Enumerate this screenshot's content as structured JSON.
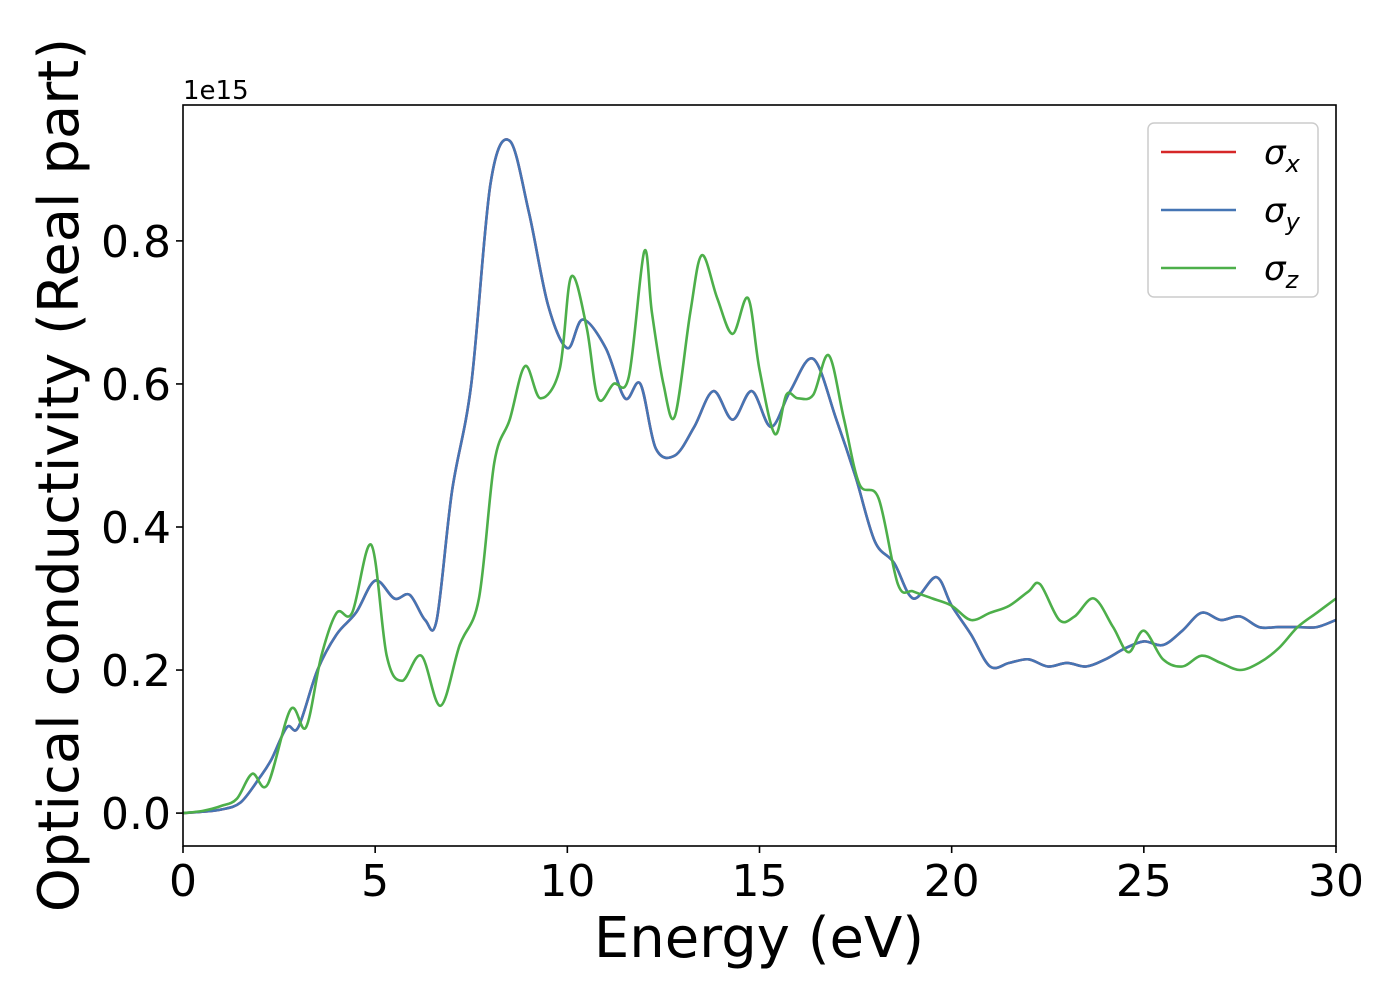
{
  "chart_data": {
    "type": "line",
    "xlabel": "Energy (eV)",
    "ylabel": "Optical conductivity (Real part)",
    "y_offset_text": "1e15",
    "y_scale": 1000000000000000.0,
    "xlim": [
      0,
      30
    ],
    "ylim": [
      -0.046,
      0.99
    ],
    "x_ticks": [
      0,
      5,
      10,
      15,
      20,
      25,
      30
    ],
    "x_tick_labels": [
      "0",
      "5",
      "10",
      "15",
      "20",
      "25",
      "30"
    ],
    "y_ticks": [
      0.0,
      0.2,
      0.4,
      0.6,
      0.8
    ],
    "y_tick_labels": [
      "0.0",
      "0.2",
      "0.4",
      "0.6",
      "0.8"
    ],
    "grid": false,
    "legend_position": "top-right",
    "series": [
      {
        "name": "σx",
        "legend_main": "σ",
        "legend_sub": "x",
        "color": "#d62728",
        "x": [
          0,
          0.5,
          1.0,
          1.5,
          2.0,
          2.3,
          2.7,
          3.0,
          3.5,
          4.0,
          4.5,
          5.0,
          5.5,
          5.9,
          6.3,
          6.6,
          7.0,
          7.5,
          8.0,
          8.5,
          9.0,
          9.5,
          10.0,
          10.4,
          11.0,
          11.5,
          11.9,
          12.3,
          12.8,
          13.3,
          13.8,
          14.3,
          14.8,
          15.3,
          15.8,
          16.4,
          17.0,
          17.5,
          18.0,
          18.5,
          19.0,
          19.6,
          20.0,
          20.5,
          21.0,
          21.5,
          22.0,
          22.5,
          23.0,
          23.5,
          24.0,
          24.5,
          25.0,
          25.5,
          26.0,
          26.5,
          27.0,
          27.5,
          28.0,
          28.5,
          29.0,
          29.5,
          30.0
        ],
        "y": [
          0.0,
          0.002,
          0.005,
          0.015,
          0.05,
          0.075,
          0.12,
          0.12,
          0.2,
          0.25,
          0.28,
          0.325,
          0.3,
          0.305,
          0.27,
          0.27,
          0.45,
          0.6,
          0.88,
          0.94,
          0.84,
          0.71,
          0.65,
          0.69,
          0.65,
          0.58,
          0.6,
          0.51,
          0.5,
          0.54,
          0.59,
          0.55,
          0.59,
          0.54,
          0.59,
          0.635,
          0.55,
          0.47,
          0.38,
          0.35,
          0.3,
          0.33,
          0.29,
          0.25,
          0.205,
          0.21,
          0.215,
          0.205,
          0.21,
          0.205,
          0.215,
          0.23,
          0.24,
          0.235,
          0.255,
          0.28,
          0.27,
          0.275,
          0.26,
          0.26,
          0.26,
          0.26,
          0.27
        ]
      },
      {
        "name": "σy",
        "legend_main": "σ",
        "legend_sub": "y",
        "color": "#4575b4",
        "x": [
          0,
          0.5,
          1.0,
          1.5,
          2.0,
          2.3,
          2.7,
          3.0,
          3.5,
          4.0,
          4.5,
          5.0,
          5.5,
          5.9,
          6.3,
          6.6,
          7.0,
          7.5,
          8.0,
          8.5,
          9.0,
          9.5,
          10.0,
          10.4,
          11.0,
          11.5,
          11.9,
          12.3,
          12.8,
          13.3,
          13.8,
          14.3,
          14.8,
          15.3,
          15.8,
          16.4,
          17.0,
          17.5,
          18.0,
          18.5,
          19.0,
          19.6,
          20.0,
          20.5,
          21.0,
          21.5,
          22.0,
          22.5,
          23.0,
          23.5,
          24.0,
          24.5,
          25.0,
          25.5,
          26.0,
          26.5,
          27.0,
          27.5,
          28.0,
          28.5,
          29.0,
          29.5,
          30.0
        ],
        "y": [
          0.0,
          0.002,
          0.005,
          0.015,
          0.05,
          0.075,
          0.12,
          0.12,
          0.2,
          0.25,
          0.28,
          0.325,
          0.3,
          0.305,
          0.27,
          0.27,
          0.45,
          0.6,
          0.88,
          0.94,
          0.84,
          0.71,
          0.65,
          0.69,
          0.65,
          0.58,
          0.6,
          0.51,
          0.5,
          0.54,
          0.59,
          0.55,
          0.59,
          0.54,
          0.59,
          0.635,
          0.55,
          0.47,
          0.38,
          0.35,
          0.3,
          0.33,
          0.29,
          0.25,
          0.205,
          0.21,
          0.215,
          0.205,
          0.21,
          0.205,
          0.215,
          0.23,
          0.24,
          0.235,
          0.255,
          0.28,
          0.27,
          0.275,
          0.26,
          0.26,
          0.26,
          0.26,
          0.27
        ]
      },
      {
        "name": "σz",
        "legend_main": "σ",
        "legend_sub": "z",
        "color": "#4daf4a",
        "x": [
          0,
          0.5,
          1.0,
          1.4,
          1.8,
          2.2,
          2.8,
          3.2,
          3.6,
          4.0,
          4.4,
          4.9,
          5.3,
          5.7,
          6.2,
          6.7,
          7.2,
          7.7,
          8.1,
          8.5,
          8.9,
          9.3,
          9.8,
          10.1,
          10.5,
          10.8,
          11.2,
          11.6,
          12.0,
          12.2,
          12.5,
          12.8,
          13.2,
          13.5,
          13.9,
          14.3,
          14.7,
          15.0,
          15.4,
          15.7,
          16.0,
          16.4,
          16.8,
          17.2,
          17.6,
          18.1,
          18.6,
          19.0,
          19.5,
          20.0,
          20.5,
          21.0,
          21.5,
          22.0,
          22.3,
          22.8,
          23.2,
          23.7,
          24.2,
          24.6,
          25.0,
          25.5,
          26.0,
          26.5,
          27.0,
          27.5,
          28.0,
          28.5,
          29.0,
          29.5,
          30.0
        ],
        "y": [
          0.0,
          0.003,
          0.01,
          0.02,
          0.055,
          0.04,
          0.145,
          0.12,
          0.22,
          0.28,
          0.28,
          0.375,
          0.22,
          0.185,
          0.22,
          0.15,
          0.235,
          0.3,
          0.49,
          0.55,
          0.625,
          0.58,
          0.62,
          0.75,
          0.68,
          0.58,
          0.6,
          0.61,
          0.785,
          0.7,
          0.6,
          0.555,
          0.7,
          0.78,
          0.72,
          0.67,
          0.72,
          0.62,
          0.53,
          0.585,
          0.58,
          0.585,
          0.64,
          0.55,
          0.46,
          0.44,
          0.32,
          0.31,
          0.3,
          0.29,
          0.27,
          0.28,
          0.29,
          0.31,
          0.32,
          0.27,
          0.275,
          0.3,
          0.26,
          0.225,
          0.255,
          0.215,
          0.205,
          0.22,
          0.21,
          0.2,
          0.21,
          0.23,
          0.26,
          0.28,
          0.3
        ]
      }
    ]
  }
}
